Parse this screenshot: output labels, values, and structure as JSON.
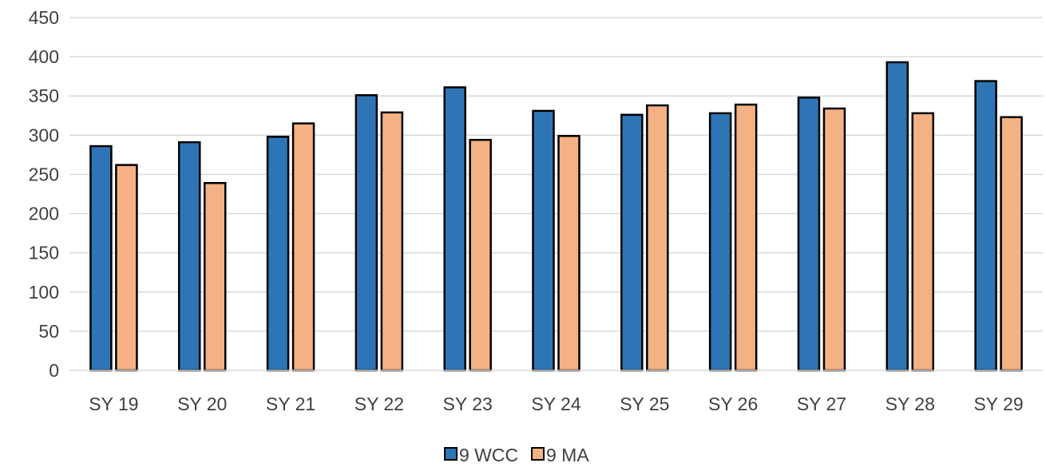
{
  "chart_data": {
    "type": "bar",
    "title": "",
    "xlabel": "",
    "ylabel": "",
    "categories": [
      "SY 19",
      "SY 20",
      "SY 21",
      "SY 22",
      "SY 23",
      "SY 24",
      "SY 25",
      "SY 26",
      "SY 27",
      "SY 28",
      "SY 29"
    ],
    "series": [
      {
        "name": "9 WCC",
        "color": "#2E75B6",
        "values": [
          286,
          291,
          298,
          351,
          361,
          331,
          326,
          328,
          348,
          393,
          369
        ]
      },
      {
        "name": "9 MA",
        "color": "#F4B183",
        "values": [
          262,
          239,
          315,
          329,
          294,
          299,
          338,
          339,
          334,
          328,
          323
        ]
      }
    ],
    "ylim": [
      0,
      450
    ],
    "yticks": [
      0,
      50,
      100,
      150,
      200,
      250,
      300,
      350,
      400,
      450
    ],
    "grid": true,
    "legend_position": "bottom",
    "bar_outline_color": "#000000",
    "gridline_color": "#D9D9D9"
  }
}
